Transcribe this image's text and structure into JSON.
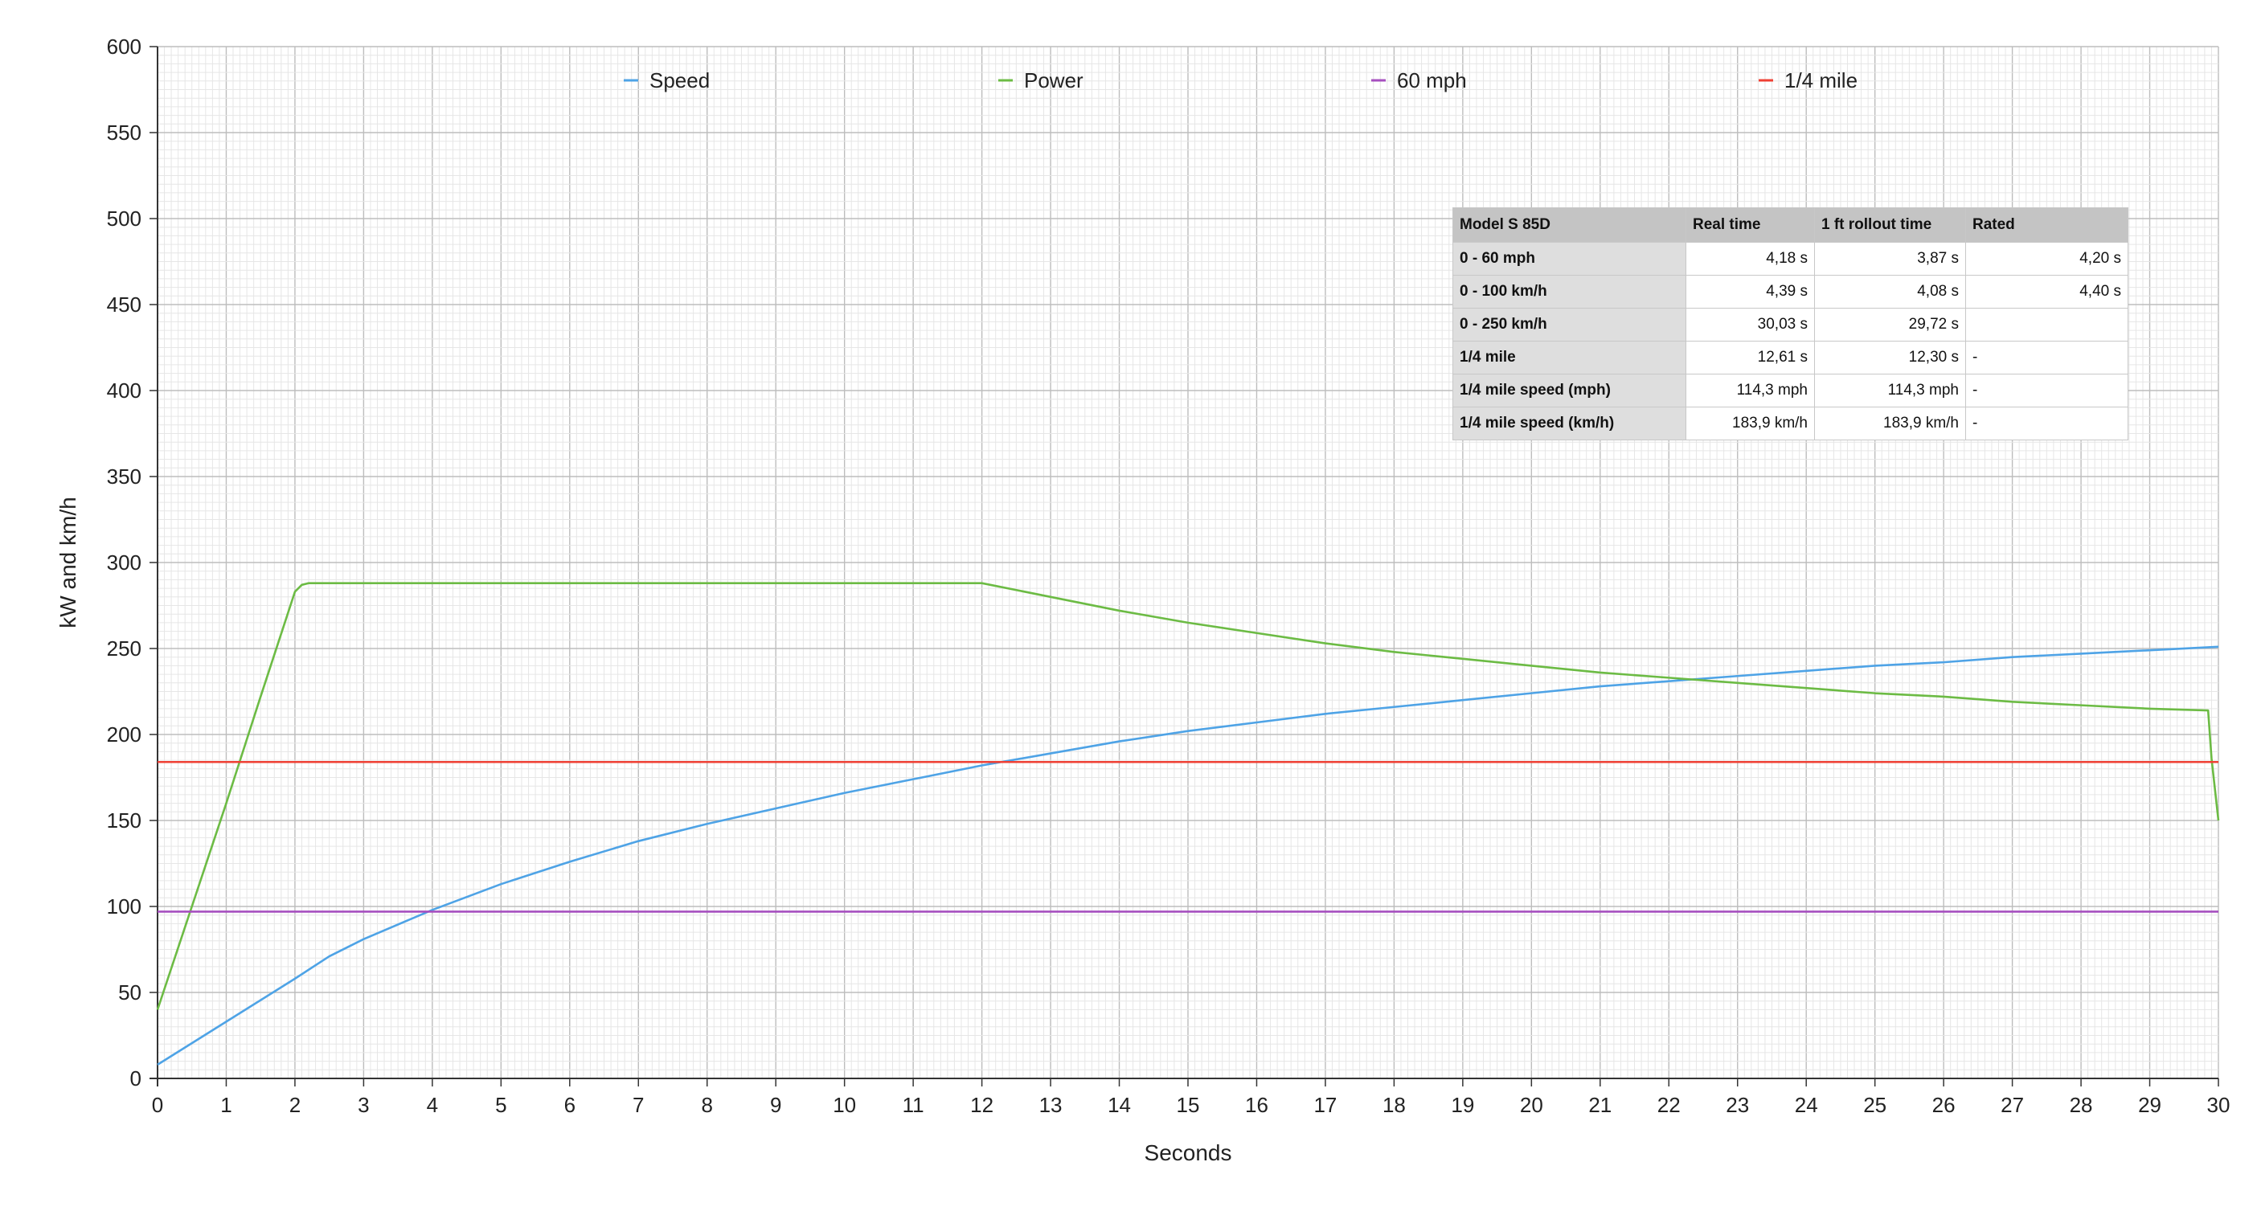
{
  "chart_data": {
    "type": "line",
    "xlabel": "Seconds",
    "ylabel": "kW and km/h",
    "xlim": [
      0,
      30
    ],
    "ylim": [
      0,
      600
    ],
    "x_ticks": [
      0,
      1,
      2,
      3,
      4,
      5,
      6,
      7,
      8,
      9,
      10,
      11,
      12,
      13,
      14,
      15,
      16,
      17,
      18,
      19,
      20,
      21,
      22,
      23,
      24,
      25,
      26,
      27,
      28,
      29,
      30
    ],
    "y_ticks": [
      0,
      50,
      100,
      150,
      200,
      250,
      300,
      350,
      400,
      450,
      500,
      550,
      600
    ],
    "grid": true,
    "legend_position": "top",
    "series": [
      {
        "name": "Speed",
        "color": "#4ea3e6",
        "x": [
          0.0,
          1.0,
          2.0,
          2.5,
          3.0,
          4.0,
          5.0,
          6.0,
          7.0,
          8.0,
          9.0,
          10.0,
          11.0,
          12.0,
          13.0,
          14.0,
          15.0,
          16.0,
          17.0,
          18.0,
          19.0,
          20.0,
          21.0,
          22.0,
          23.0,
          24.0,
          25.0,
          26.0,
          27.0,
          28.0,
          29.0,
          30.0
        ],
        "y": [
          8,
          33,
          58,
          71,
          81,
          98,
          113,
          126,
          138,
          148,
          157,
          166,
          174,
          182,
          189,
          196,
          202,
          207,
          212,
          216,
          220,
          224,
          228,
          231,
          234,
          237,
          240,
          242,
          245,
          247,
          249,
          251
        ]
      },
      {
        "name": "Power",
        "color": "#6cbb44",
        "x": [
          0.0,
          0.5,
          1.0,
          1.5,
          2.0,
          2.1,
          2.2,
          12.0,
          13.0,
          14.0,
          15.0,
          16.0,
          17.0,
          18.0,
          19.0,
          20.0,
          21.0,
          22.0,
          23.0,
          24.0,
          25.0,
          26.0,
          27.0,
          28.0,
          29.0,
          29.85,
          29.9,
          30.0
        ],
        "y": [
          40,
          100,
          160,
          222,
          283,
          287,
          288,
          288,
          280,
          272,
          265,
          259,
          253,
          248,
          244,
          240,
          236,
          233,
          230,
          227,
          224,
          222,
          219,
          217,
          215,
          214,
          186,
          150
        ]
      },
      {
        "name": "60 mph",
        "color": "#a64fbf",
        "x": [
          0,
          30
        ],
        "y": [
          97,
          97
        ]
      },
      {
        "name": "1/4 mile",
        "color": "#ef4034",
        "x": [
          0,
          30
        ],
        "y": [
          184,
          184
        ]
      }
    ]
  },
  "table": {
    "header": [
      "Model S 85D",
      "Real time",
      "1 ft rollout time",
      "Rated"
    ],
    "rows": [
      {
        "label": "0 - 60 mph",
        "real": "4,18 s",
        "rollout": "3,87 s",
        "rated": "4,20 s"
      },
      {
        "label": "0 - 100 km/h",
        "real": "4,39 s",
        "rollout": "4,08 s",
        "rated": "4,40 s"
      },
      {
        "label": "0 - 250 km/h",
        "real": "30,03 s",
        "rollout": "29,72 s",
        "rated": ""
      },
      {
        "label": "1/4 mile",
        "real": "12,61 s",
        "rollout": "12,30 s",
        "rated": "-"
      },
      {
        "label": "1/4 mile speed (mph)",
        "real": "114,3 mph",
        "rollout": "114,3 mph",
        "rated": "-"
      },
      {
        "label": "1/4 mile speed (km/h)",
        "real": "183,9 km/h",
        "rollout": "183,9 km/h",
        "rated": "-"
      }
    ]
  }
}
